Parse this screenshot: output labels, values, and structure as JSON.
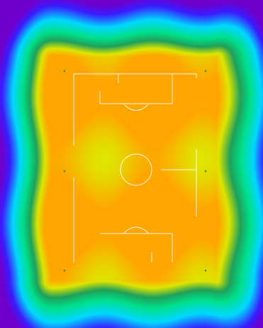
{
  "heatmap": {
    "palette": [
      "#7000cc",
      "#3a1cff",
      "#00d8ff",
      "#00e08a",
      "#1fa05a",
      "#dfe600",
      "#ffa500"
    ],
    "core_color": "#ffa500",
    "outer_color": "#6a00c8"
  },
  "pitch": {
    "line_color": "#ffffff",
    "marker_color": "#3c8c3c",
    "markers": 6,
    "orientation": "vertical"
  }
}
